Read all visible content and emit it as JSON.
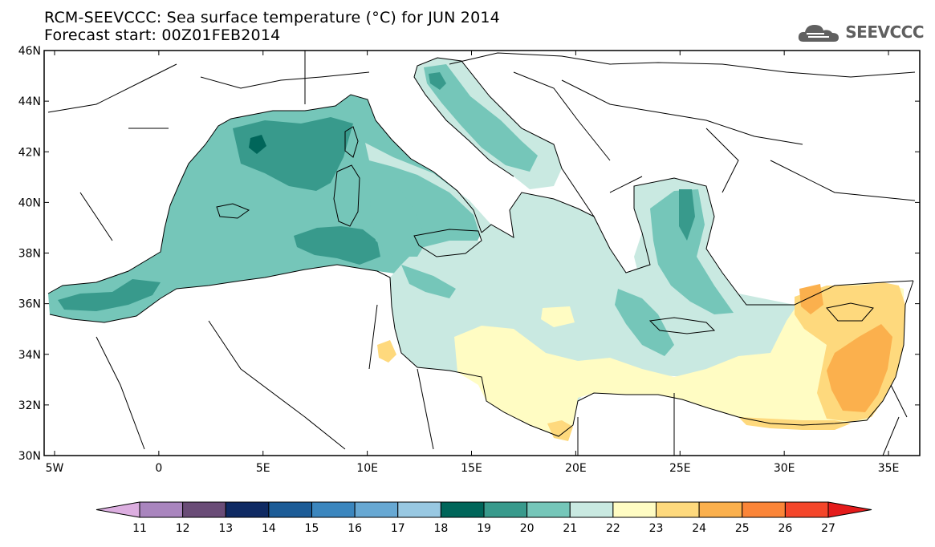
{
  "title_line1": "RCM-SEEVCCC: Sea surface temperature (°C) for JUN 2014",
  "title_line2": "Forecast start: 00Z01FEB2014",
  "logo_text": "SEEVCCC",
  "map": {
    "lat_labels": [
      "46N",
      "44N",
      "42N",
      "40N",
      "38N",
      "36N",
      "34N",
      "32N",
      "30N"
    ],
    "lon_labels": [
      "5W",
      "0",
      "5E",
      "10E",
      "15E",
      "20E",
      "25E",
      "30E",
      "35E"
    ],
    "lon_range": [
      -5.5,
      36.5
    ],
    "lat_range": [
      30,
      46
    ],
    "land_color": "#ffffff",
    "border_color": "#000000"
  },
  "colorbar": {
    "labels": [
      "11",
      "12",
      "13",
      "14",
      "15",
      "16",
      "17",
      "18",
      "19",
      "20",
      "21",
      "22",
      "23",
      "24",
      "25",
      "26",
      "27"
    ],
    "colors": [
      "#dcaee0",
      "#a985be",
      "#6a4c77",
      "#0f2a63",
      "#1c5c97",
      "#3b86be",
      "#67a8d3",
      "#98c8e2",
      "#00665a",
      "#389a8c",
      "#75c6b9",
      "#c9e9e1",
      "#fffcc3",
      "#fed97d",
      "#fbb04d",
      "#fb8538",
      "#f4462a",
      "#e41b1b"
    ]
  },
  "chart_data": {
    "type": "heatmap",
    "title": "RCM-SEEVCCC: Sea surface temperature (°C) for JUN 2014",
    "subtitle": "Forecast start: 00Z01FEB2014",
    "xlim": [
      -5.5,
      36.5
    ],
    "ylim": [
      30,
      46
    ],
    "levels": [
      11,
      12,
      13,
      14,
      15,
      16,
      17,
      18,
      19,
      20,
      21,
      22,
      23,
      24,
      25,
      26,
      27
    ]
  }
}
